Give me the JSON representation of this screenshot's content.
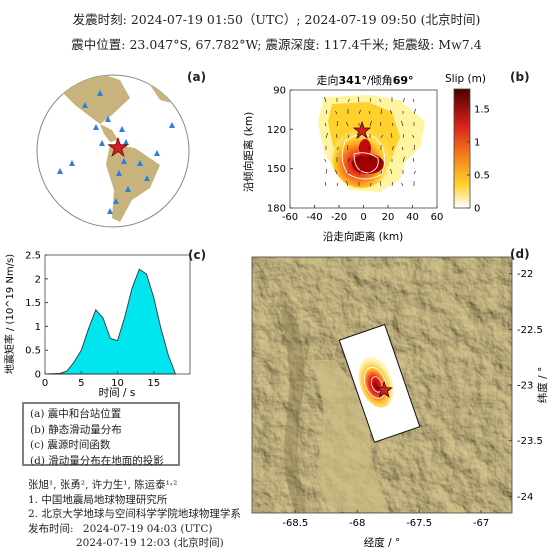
{
  "header": {
    "origin_time": "发震时刻: 2024-07-19 01:50（UTC）;   2024-07-19  09:50 (北京时间)",
    "location": "震中位置: 23.047°S,  67.782°W;   震源深度: 117.4千米; 矩震级: Mw7.4"
  },
  "panel_labels": {
    "a": "(a)",
    "b": "(b)",
    "c": "(c)",
    "d": "(d)"
  },
  "panel_b": {
    "title_prefix": "走向",
    "strike": "341°",
    "title_mid": "/倾角",
    "dip": "69°",
    "xlabel": "沿走向距离 (km)",
    "ylabel": "沿倾向距离 (km)",
    "colorbar_label": "Slip (m)",
    "colorbar_ticks": [
      "1.5",
      "1",
      "0.5",
      "0"
    ]
  },
  "legend": {
    "items": [
      "(a) 震中和台站位置",
      "(b) 静态滑动量分布",
      "(c) 震源时间函数",
      "(d) 滑动量分布在地面的投影"
    ]
  },
  "credits": {
    "authors": "张旭¹, 张勇², 许力生¹, 陈运泰¹˒²",
    "aff1": "1. 中国地震局地球物理研究所",
    "aff2": "2. 北京大学地球与空间科学学院地球物理学系",
    "release_label": "发布时间:",
    "release_utc": "2024-07-19  04:03 (UTC)",
    "release_bj": "2024-07-19  12:03 (北京时间)"
  },
  "colors": {
    "stf_fill": "#00e5ee",
    "land": "#c8b57d",
    "slip_max": "#9b0000"
  },
  "chart_data": [
    {
      "type": "area",
      "panel": "c",
      "xlabel": "时间 / s",
      "ylabel": "地震矩率 / (10^19 Nm/s)",
      "xlim": [
        0,
        20
      ],
      "ylim": [
        0,
        2.5
      ],
      "xticks": [
        0,
        5,
        10,
        15
      ],
      "yticks": [
        0,
        0.5,
        1,
        1.5,
        2,
        2.5
      ],
      "x": [
        0,
        2,
        3,
        4,
        5,
        6,
        7,
        8,
        9,
        10,
        11,
        12,
        13,
        14,
        15,
        16,
        17,
        18
      ],
      "y": [
        0,
        0.01,
        0.06,
        0.25,
        0.5,
        0.95,
        1.35,
        1.18,
        0.75,
        0.7,
        1.2,
        1.8,
        2.2,
        2.1,
        1.6,
        0.95,
        0.4,
        0
      ]
    },
    {
      "type": "heatmap",
      "panel": "b",
      "xlabel": "沿走向距离 (km)",
      "ylabel": "沿倾向距离 (km)",
      "xlim": [
        -60,
        60
      ],
      "ylim": [
        180,
        90
      ],
      "xticks": [
        -60,
        -40,
        -20,
        0,
        20,
        40,
        60
      ],
      "yticks": [
        90,
        120,
        150,
        180
      ],
      "clim": [
        0,
        1.8
      ],
      "colorbar_ticks": [
        0,
        0.5,
        1,
        1.5
      ],
      "peak_slip_location": {
        "along_strike": 5,
        "along_dip": 148,
        "slip": 1.8
      }
    },
    {
      "type": "scatter",
      "panel": "d",
      "xlabel": "经度 / °",
      "ylabel": "纬度 / °",
      "xlim": [
        -68.85,
        -66.75
      ],
      "ylim": [
        -24.15,
        -21.85
      ],
      "xticks": [
        -68.5,
        -68,
        -67.5,
        -67
      ],
      "yticks": [
        -22,
        -22.5,
        -23,
        -23.5,
        -24
      ],
      "epicenter": {
        "lon": -67.782,
        "lat": -23.047
      }
    }
  ]
}
